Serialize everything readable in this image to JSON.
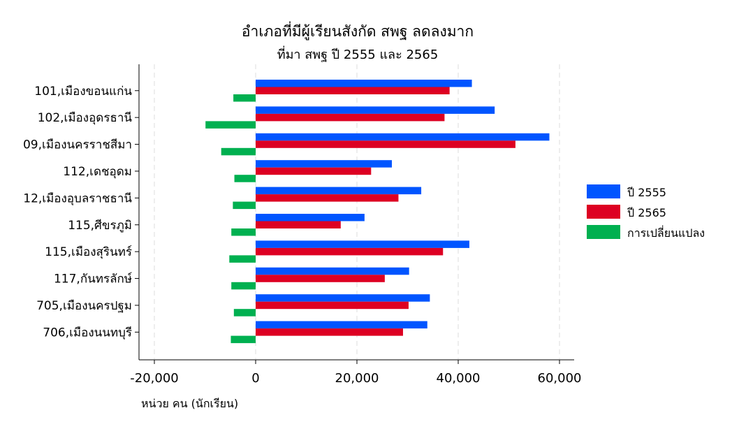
{
  "chart_data": {
    "type": "bar",
    "orientation": "horizontal",
    "title": "อำเภอที่มีผู้เรียนสังกัด สพฐ  ลดลงมาก",
    "subtitle": "ที่มา สพฐ ปี 2555 และ 2565",
    "xlabel": "หน่วย คน (นักเรียน)",
    "ylabel": "",
    "xlim": [
      -25000,
      63000
    ],
    "xticks": [
      -20000,
      0,
      20000,
      40000,
      60000
    ],
    "xtick_labels": [
      "-20,000",
      "0",
      "20,000",
      "40,000",
      "60,000"
    ],
    "grid": "vertical dashed",
    "legend_position": "right",
    "categories": [
      "101,เมืองขอนแก่น",
      "102,เมืองอุดรธานี",
      "09,เมืองนครราชสีมา",
      "112,เดชอุดม",
      "12,เมืองอุบลราชธานี",
      "115,ศีขรภูมิ",
      "115,เมืองสุรินทร์",
      "117,กันทรลักษ์",
      "705,เมืองนครปฐม",
      "706,เมืองนนทบุรี"
    ],
    "series": [
      {
        "name": "ปี 2555",
        "color": "#0055ff",
        "values": [
          42700,
          47200,
          58000,
          26900,
          32700,
          21500,
          42200,
          30300,
          34400,
          33900
        ]
      },
      {
        "name": "ปี 2565",
        "color": "#dd0022",
        "values": [
          38300,
          37300,
          51300,
          22800,
          28200,
          16800,
          37000,
          25500,
          30200,
          29100
        ]
      },
      {
        "name": "การเปลี่ยนแปลง",
        "color": "#00b050",
        "values": [
          -4400,
          -9900,
          -6800,
          -4200,
          -4500,
          -4800,
          -5200,
          -4800,
          -4300,
          -4900
        ]
      }
    ]
  }
}
